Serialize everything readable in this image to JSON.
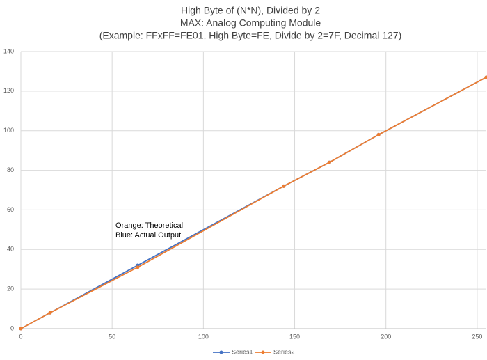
{
  "chart_data": {
    "type": "line",
    "title": [
      "High Byte of (N*N), Divided by 2",
      "MAX: Analog Computing Module",
      "(Example: FFxFF=FE01, High Byte=FE, Divide by 2=7F, Decimal 127)"
    ],
    "annotations": [
      "Orange: Theoretical",
      "Blue: Actual Output"
    ],
    "x": [
      0,
      16,
      64,
      144,
      169,
      196,
      255
    ],
    "series": [
      {
        "name": "Series1",
        "color": "#4472c4",
        "values": [
          0,
          8,
          32,
          72,
          84,
          98,
          127
        ]
      },
      {
        "name": "Series2",
        "color": "#ed7d31",
        "values": [
          0,
          8,
          31,
          72,
          84,
          98,
          127
        ]
      }
    ],
    "xlim": [
      0,
      255
    ],
    "xticks": [
      0,
      50,
      100,
      150,
      200,
      250
    ],
    "ylim": [
      0,
      140
    ],
    "yticks": [
      0,
      20,
      40,
      60,
      80,
      100,
      120,
      140
    ],
    "grid": true,
    "legend": "bottom"
  }
}
